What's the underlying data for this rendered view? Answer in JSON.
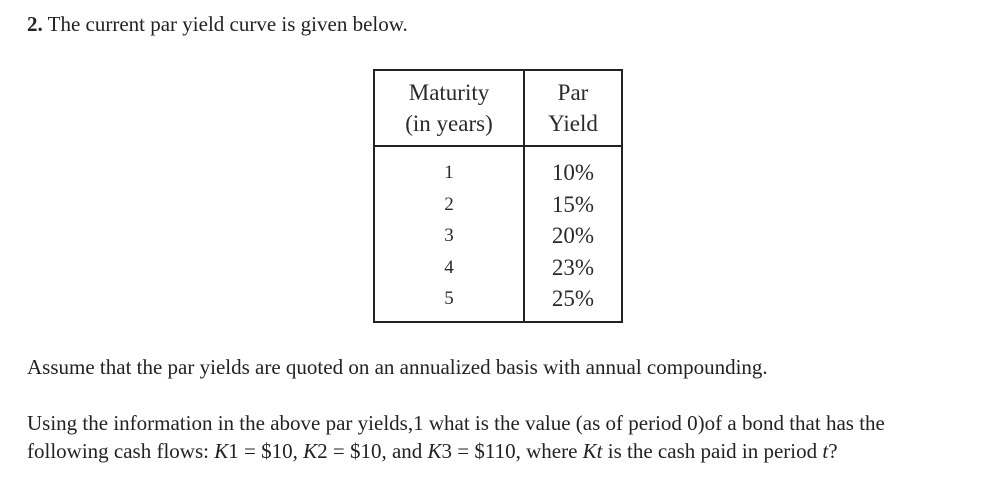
{
  "question": {
    "number": "2.",
    "intro": " The current par yield curve is given below."
  },
  "table": {
    "headers": {
      "maturity_line1": "Maturity",
      "maturity_line2": "(in years)",
      "yield_line1": "Par",
      "yield_line2": "Yield"
    },
    "rows": [
      {
        "maturity": "1",
        "yield": "10%"
      },
      {
        "maturity": "2",
        "yield": "15%"
      },
      {
        "maturity": "3",
        "yield": "20%"
      },
      {
        "maturity": "4",
        "yield": "23%"
      },
      {
        "maturity": "5",
        "yield": "25%"
      }
    ]
  },
  "assumption": "Assume that the par yields are quoted on an annualized basis with annual compounding.",
  "question_text": {
    "part1": "Using the information in the above par yields,1 what is the value (as of period 0)of a bond that has the following cash flows: ",
    "k1_var": "K",
    "k1_rest": "1 = $10, ",
    "k2_var": "K",
    "k2_rest": "2 = $10, and ",
    "k3_var": "K",
    "k3_rest": "3 = $110, where ",
    "kt_var": "Kt",
    "part2": " is the cash paid in period ",
    "t_var": "t",
    "end": "?"
  }
}
